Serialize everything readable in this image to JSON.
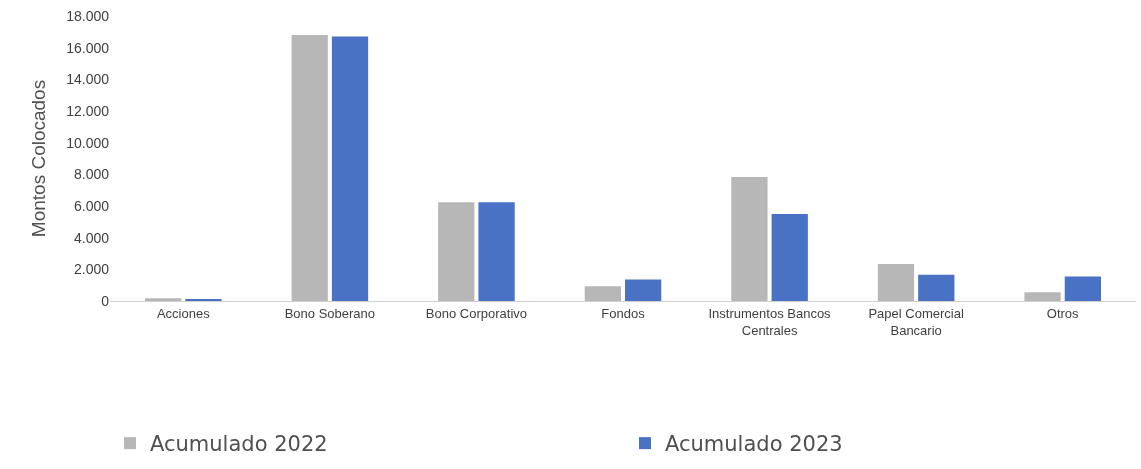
{
  "chart_data": {
    "type": "bar",
    "ylabel": "Montos Colocados",
    "categories": [
      "Acciones",
      "Bono Soberano",
      "Bono Corporativo",
      "Fondos",
      "Instrumentos Bancos\nCentrales",
      "Papel Comercial\nBancario",
      "Otros"
    ],
    "series": [
      {
        "name": "Acumulado 2022",
        "color": "#b7b7b7",
        "values": [
          180,
          16800,
          6230,
          930,
          7830,
          2340,
          560
        ]
      },
      {
        "name": "Acumulado 2023",
        "color": "#4a72c4",
        "values": [
          120,
          16700,
          6230,
          1360,
          5490,
          1660,
          1540
        ]
      }
    ],
    "ylim": [
      0,
      18000
    ],
    "yticks": [
      0,
      {
        "value": 2000,
        "label": "2.000"
      },
      {
        "value": 4000,
        "label": "4.000"
      },
      {
        "value": 6000,
        "label": "6.000"
      },
      {
        "value": 8000,
        "label": "8.000"
      },
      {
        "value": 10000,
        "label": "10.000"
      },
      {
        "value": 12000,
        "label": "12.000"
      },
      {
        "value": 14000,
        "label": "14.000"
      },
      {
        "value": 16000,
        "label": "16.000"
      },
      {
        "value": 18000,
        "label": "18.000"
      }
    ],
    "legend": "bottom"
  }
}
